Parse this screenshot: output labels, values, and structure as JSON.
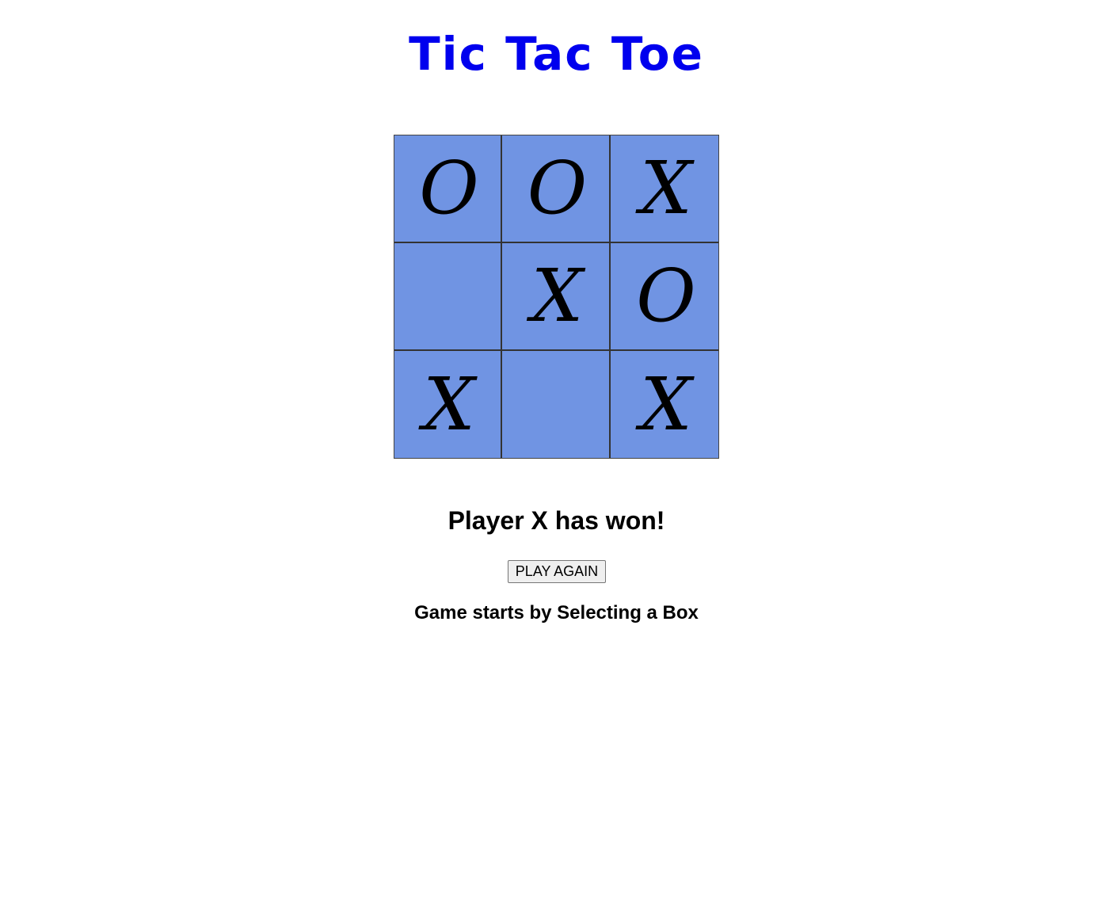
{
  "title": "Tic Tac Toe",
  "colors": {
    "title": "#0000ee",
    "cell_background": "#7094e3",
    "grid_line": "#333333"
  },
  "board": [
    [
      "O",
      "O",
      "X"
    ],
    [
      "",
      "X",
      "O"
    ],
    [
      "X",
      "",
      "X"
    ]
  ],
  "status": "Player X has won!",
  "play_again_label": "PLAY AGAIN",
  "hint": "Game starts by Selecting a Box"
}
